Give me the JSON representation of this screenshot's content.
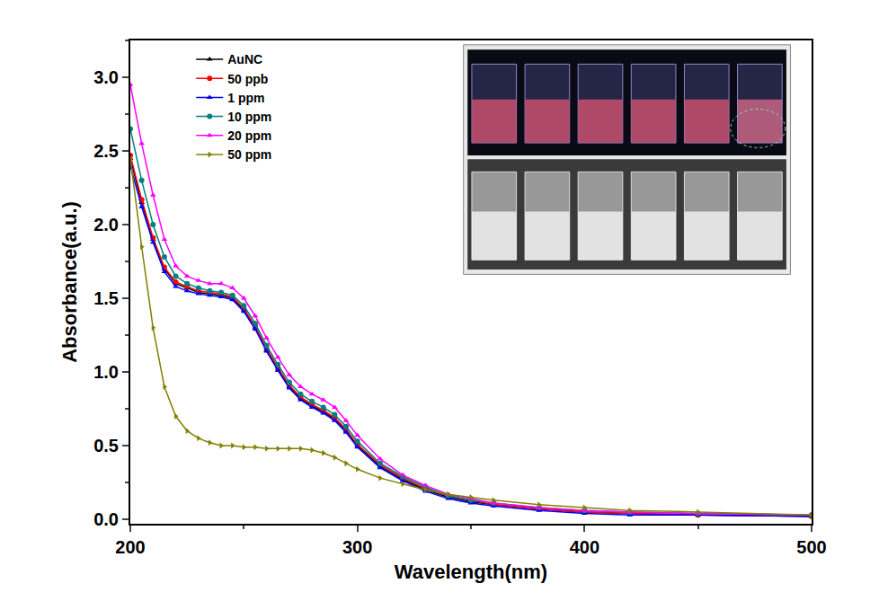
{
  "chart_data": {
    "type": "line",
    "x_label": "Wavelength(nm)",
    "y_label": "Absorbance(a.u.)",
    "x": [
      200,
      205,
      210,
      215,
      220,
      225,
      230,
      235,
      240,
      245,
      250,
      255,
      260,
      265,
      270,
      275,
      280,
      285,
      290,
      295,
      300,
      310,
      320,
      330,
      340,
      350,
      360,
      380,
      400,
      420,
      450,
      500
    ],
    "series": [
      {
        "name": "AuNC",
        "color": "#000000",
        "marker": "triangle-up",
        "values": [
          2.45,
          2.15,
          1.9,
          1.7,
          1.6,
          1.57,
          1.54,
          1.53,
          1.52,
          1.5,
          1.42,
          1.3,
          1.15,
          1.02,
          0.9,
          0.82,
          0.77,
          0.73,
          0.68,
          0.6,
          0.5,
          0.36,
          0.27,
          0.2,
          0.15,
          0.12,
          0.1,
          0.07,
          0.05,
          0.04,
          0.03,
          0.02
        ]
      },
      {
        "name": "50 ppb",
        "color": "#ff0000",
        "marker": "circle",
        "values": [
          2.47,
          2.17,
          1.91,
          1.71,
          1.61,
          1.58,
          1.55,
          1.54,
          1.53,
          1.51,
          1.43,
          1.31,
          1.16,
          1.03,
          0.91,
          0.83,
          0.78,
          0.74,
          0.69,
          0.61,
          0.51,
          0.37,
          0.28,
          0.21,
          0.16,
          0.13,
          0.1,
          0.07,
          0.05,
          0.04,
          0.03,
          0.02
        ]
      },
      {
        "name": "1 ppm",
        "color": "#0000ff",
        "marker": "triangle-up",
        "values": [
          2.4,
          2.12,
          1.88,
          1.68,
          1.58,
          1.55,
          1.53,
          1.52,
          1.51,
          1.49,
          1.41,
          1.29,
          1.14,
          1.01,
          0.89,
          0.81,
          0.76,
          0.72,
          0.67,
          0.59,
          0.49,
          0.35,
          0.26,
          0.19,
          0.14,
          0.11,
          0.09,
          0.06,
          0.04,
          0.03,
          0.03,
          0.02
        ]
      },
      {
        "name": "10 ppm",
        "color": "#008080",
        "marker": "circle",
        "values": [
          2.65,
          2.3,
          2.0,
          1.78,
          1.65,
          1.6,
          1.57,
          1.55,
          1.54,
          1.52,
          1.45,
          1.33,
          1.18,
          1.05,
          0.93,
          0.85,
          0.8,
          0.76,
          0.71,
          0.63,
          0.53,
          0.38,
          0.29,
          0.22,
          0.16,
          0.13,
          0.11,
          0.08,
          0.06,
          0.05,
          0.04,
          0.03
        ]
      },
      {
        "name": "20 ppm",
        "color": "#ff00ff",
        "marker": "triangle-up",
        "values": [
          2.95,
          2.55,
          2.2,
          1.9,
          1.72,
          1.65,
          1.62,
          1.6,
          1.6,
          1.57,
          1.5,
          1.38,
          1.23,
          1.1,
          0.98,
          0.9,
          0.85,
          0.81,
          0.76,
          0.67,
          0.57,
          0.41,
          0.3,
          0.23,
          0.17,
          0.14,
          0.11,
          0.08,
          0.06,
          0.05,
          0.04,
          0.03
        ]
      },
      {
        "name": "50 ppm",
        "color": "#808000",
        "marker": "triangle-right",
        "values": [
          2.45,
          1.85,
          1.3,
          0.9,
          0.7,
          0.6,
          0.55,
          0.52,
          0.5,
          0.5,
          0.49,
          0.49,
          0.48,
          0.48,
          0.48,
          0.48,
          0.47,
          0.45,
          0.42,
          0.38,
          0.34,
          0.28,
          0.24,
          0.2,
          0.17,
          0.15,
          0.13,
          0.1,
          0.08,
          0.06,
          0.05,
          0.03
        ]
      }
    ],
    "xlim": [
      200,
      500
    ],
    "xticks": [
      200,
      300,
      400,
      500
    ],
    "ylim": [
      -0.03,
      3.25
    ],
    "yticks": [
      {
        "value": 0,
        "label": "0.0"
      },
      0.5,
      {
        "value": 1,
        "label": "1.0"
      },
      1.5,
      {
        "value": 2,
        "label": "2.0"
      },
      2.5,
      {
        "value": 3,
        "label": "3.0"
      }
    ],
    "legend": "upper left",
    "grid": false
  }
}
